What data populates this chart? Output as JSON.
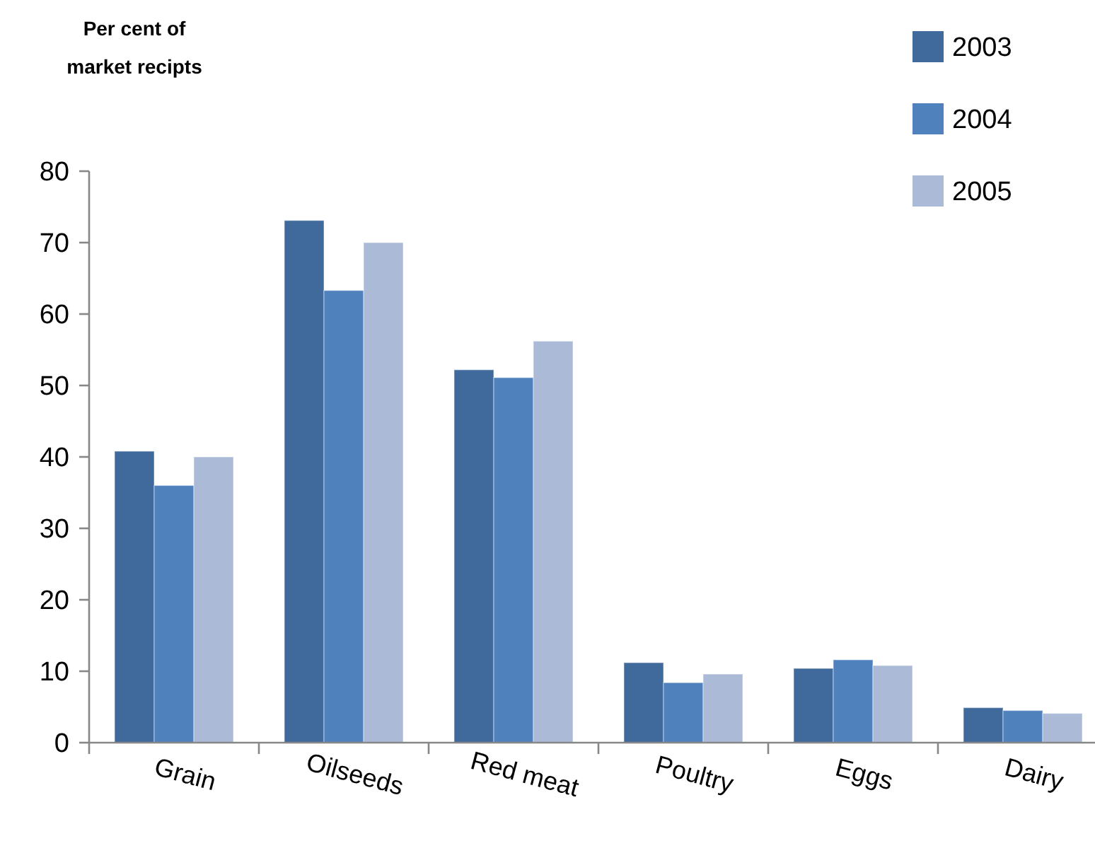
{
  "chart_data": {
    "type": "bar",
    "ylabel": "Per cent  of market recipts",
    "categories": [
      "Grain",
      "Oilseeds",
      "Red meat",
      "Poultry",
      "Eggs",
      "Dairy"
    ],
    "series": [
      {
        "name": "2003",
        "color": "#406a9c",
        "values": [
          40.8,
          73.1,
          52.2,
          11.2,
          10.4,
          4.9
        ]
      },
      {
        "name": "2004",
        "color": "#4f81bd",
        "values": [
          36.0,
          63.3,
          51.1,
          8.4,
          11.6,
          4.5
        ]
      },
      {
        "name": "2005",
        "color": "#aabad7",
        "values": [
          40.0,
          70.0,
          56.2,
          9.6,
          10.8,
          4.1
        ]
      }
    ],
    "ylim": [
      0,
      80
    ],
    "yticks": [
      0,
      10,
      20,
      30,
      40,
      50,
      60,
      70,
      80
    ],
    "legend": "top right",
    "grid": false
  }
}
